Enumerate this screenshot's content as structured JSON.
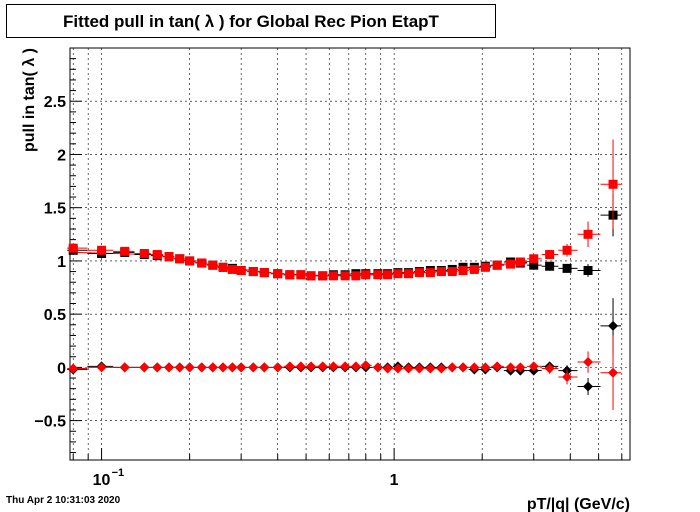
{
  "chart_data": {
    "type": "scatter",
    "title": "Fitted pull in tan( λ ) for Global Rec Pion EtapT",
    "xlabel": "pT/|q| (GeV/c)",
    "ylabel": "pull in tan( λ )",
    "xscale": "log",
    "xlim": [
      0.078,
      6.4
    ],
    "ylim": [
      -0.87,
      3.0
    ],
    "grid": true,
    "x_tick_labels": [
      {
        "value": 0.1,
        "label": "10",
        "sup": "−1"
      },
      {
        "value": 1,
        "label": "1",
        "sup": ""
      }
    ],
    "y_ticks": [
      -0.5,
      0,
      0.5,
      1,
      1.5,
      2,
      2.5
    ],
    "y_tick_labels": [
      "−0.5",
      "0",
      "0.5",
      "1",
      "1.5",
      "2",
      "2.5"
    ],
    "x": [
      0.08,
      0.1,
      0.12,
      0.14,
      0.155,
      0.17,
      0.185,
      0.2,
      0.22,
      0.24,
      0.26,
      0.28,
      0.3,
      0.33,
      0.36,
      0.4,
      0.44,
      0.48,
      0.52,
      0.57,
      0.62,
      0.68,
      0.74,
      0.8,
      0.88,
      0.95,
      1.03,
      1.12,
      1.22,
      1.33,
      1.45,
      1.58,
      1.72,
      1.88,
      2.05,
      2.25,
      2.5,
      2.7,
      3.0,
      3.4,
      3.9,
      4.6,
      5.6
    ],
    "series": [
      {
        "name": "mean black",
        "color": "#000000",
        "marker": "square",
        "values": [
          1.1,
          1.07,
          1.08,
          1.06,
          1.05,
          1.04,
          1.02,
          1.0,
          0.98,
          0.96,
          0.94,
          0.93,
          0.91,
          0.9,
          0.89,
          0.88,
          0.87,
          0.87,
          0.86,
          0.86,
          0.87,
          0.87,
          0.88,
          0.88,
          0.88,
          0.88,
          0.89,
          0.89,
          0.9,
          0.91,
          0.91,
          0.92,
          0.94,
          0.94,
          0.95,
          0.96,
          0.99,
          0.98,
          0.96,
          0.95,
          0.93,
          0.91,
          1.43
        ],
        "errors": [
          0.03,
          0.02,
          0.02,
          0.02,
          0.02,
          0.02,
          0.02,
          0.02,
          0.01,
          0.01,
          0.01,
          0.01,
          0.01,
          0.01,
          0.01,
          0.01,
          0.01,
          0.01,
          0.01,
          0.01,
          0.01,
          0.01,
          0.01,
          0.01,
          0.01,
          0.01,
          0.01,
          0.01,
          0.01,
          0.01,
          0.01,
          0.01,
          0.01,
          0.02,
          0.02,
          0.02,
          0.02,
          0.02,
          0.03,
          0.03,
          0.04,
          0.06,
          0.2
        ]
      },
      {
        "name": "mean red",
        "color": "#ff0000",
        "marker": "square",
        "values": [
          1.12,
          1.1,
          1.09,
          1.07,
          1.06,
          1.04,
          1.02,
          1.0,
          0.98,
          0.96,
          0.94,
          0.92,
          0.91,
          0.9,
          0.89,
          0.88,
          0.87,
          0.87,
          0.86,
          0.86,
          0.86,
          0.86,
          0.86,
          0.87,
          0.87,
          0.87,
          0.88,
          0.88,
          0.89,
          0.89,
          0.9,
          0.9,
          0.91,
          0.92,
          0.94,
          0.96,
          0.97,
          0.99,
          1.02,
          1.06,
          1.1,
          1.25,
          1.72
        ],
        "errors": [
          0.03,
          0.02,
          0.02,
          0.02,
          0.02,
          0.02,
          0.02,
          0.02,
          0.01,
          0.01,
          0.01,
          0.01,
          0.01,
          0.01,
          0.01,
          0.01,
          0.01,
          0.01,
          0.01,
          0.01,
          0.01,
          0.01,
          0.01,
          0.01,
          0.01,
          0.01,
          0.01,
          0.01,
          0.01,
          0.01,
          0.01,
          0.01,
          0.01,
          0.02,
          0.02,
          0.02,
          0.02,
          0.03,
          0.03,
          0.04,
          0.06,
          0.12,
          0.42
        ]
      },
      {
        "name": "sigma black",
        "color": "#000000",
        "marker": "diamond",
        "values": [
          -0.02,
          0.01,
          0.0,
          0.0,
          0.0,
          0.0,
          0.0,
          0.0,
          0.0,
          0.0,
          0.0,
          0.0,
          0.0,
          0.0,
          0.0,
          0.0,
          0.0,
          0.0,
          0.0,
          0.0,
          0.0,
          0.0,
          0.0,
          0.0,
          0.0,
          0.0,
          0.01,
          0.0,
          0.0,
          0.0,
          0.0,
          0.0,
          0.0,
          -0.02,
          -0.02,
          0.0,
          -0.03,
          -0.03,
          -0.03,
          0.01,
          -0.03,
          -0.18,
          0.39
        ],
        "errors": [
          0.03,
          0.02,
          0.02,
          0.02,
          0.01,
          0.01,
          0.01,
          0.01,
          0.01,
          0.01,
          0.01,
          0.01,
          0.01,
          0.01,
          0.01,
          0.01,
          0.01,
          0.01,
          0.01,
          0.01,
          0.01,
          0.01,
          0.01,
          0.01,
          0.01,
          0.01,
          0.01,
          0.01,
          0.01,
          0.01,
          0.01,
          0.01,
          0.01,
          0.02,
          0.02,
          0.02,
          0.02,
          0.03,
          0.03,
          0.04,
          0.05,
          0.08,
          0.26
        ]
      },
      {
        "name": "sigma red",
        "color": "#ff0000",
        "marker": "diamond",
        "values": [
          -0.01,
          0.0,
          0.0,
          0.0,
          0.0,
          0.0,
          0.0,
          0.0,
          0.0,
          0.0,
          0.0,
          0.0,
          0.0,
          0.0,
          0.0,
          0.0,
          0.01,
          0.01,
          0.01,
          0.01,
          0.01,
          0.01,
          0.01,
          0.02,
          0.0,
          -0.01,
          -0.01,
          -0.01,
          -0.01,
          -0.01,
          -0.01,
          0.0,
          0.0,
          0.0,
          0.0,
          0.01,
          0.0,
          0.0,
          0.01,
          -0.01,
          -0.09,
          0.05,
          -0.05
        ],
        "errors": [
          0.03,
          0.02,
          0.02,
          0.02,
          0.01,
          0.01,
          0.01,
          0.01,
          0.01,
          0.01,
          0.01,
          0.01,
          0.01,
          0.01,
          0.01,
          0.01,
          0.01,
          0.01,
          0.01,
          0.01,
          0.01,
          0.01,
          0.01,
          0.01,
          0.01,
          0.01,
          0.01,
          0.01,
          0.01,
          0.01,
          0.01,
          0.01,
          0.01,
          0.02,
          0.02,
          0.02,
          0.02,
          0.03,
          0.04,
          0.05,
          0.07,
          0.1,
          0.35
        ]
      }
    ],
    "fit_curves": [
      {
        "color": "#ff0000",
        "x": [
          0.08,
          0.15,
          0.25,
          0.4,
          0.6,
          0.9,
          1.4,
          2.2,
          3.0
        ],
        "y": [
          1.08,
          1.06,
          0.95,
          0.88,
          0.86,
          0.87,
          0.9,
          0.96,
          1.0
        ]
      }
    ]
  },
  "footer": {
    "timestamp": "Thu Apr  2 10:31:03 2020"
  }
}
